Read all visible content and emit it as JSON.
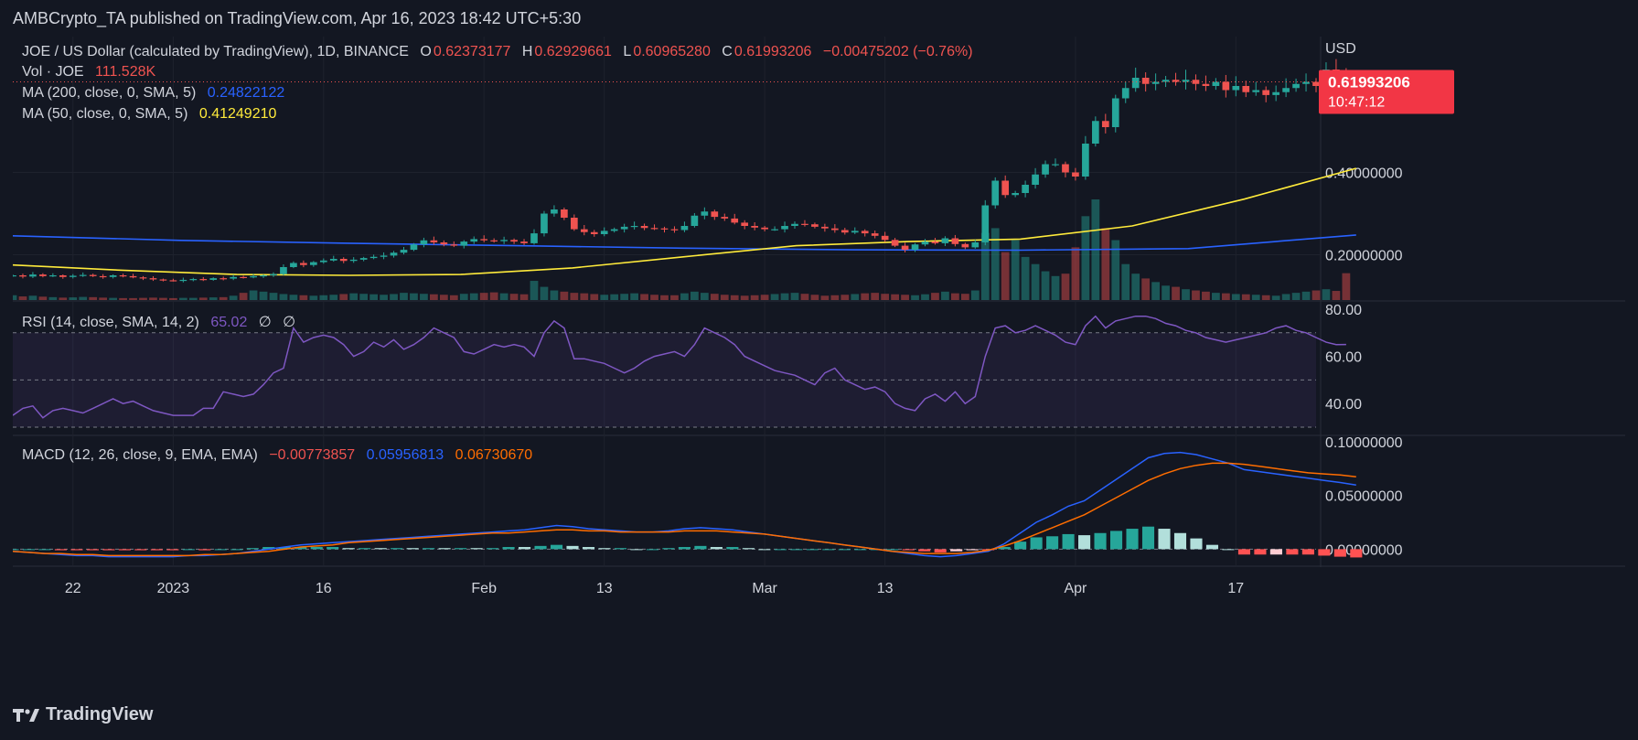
{
  "header": {
    "title": "AMBCrypto_TA published on TradingView.com, Apr 16, 2023 18:42 UTC+5:30"
  },
  "legend": {
    "symbol": "JOE / US Dollar (calculated by TradingView), 1D, BINANCE",
    "o_label": "O",
    "o_value": "0.62373177",
    "h_label": "H",
    "h_value": "0.62929661",
    "l_label": "L",
    "l_value": "0.60965280",
    "c_label": "C",
    "c_value": "0.61993206",
    "change": "−0.00475202 (−0.76%)",
    "vol_label": "Vol · JOE",
    "vol_value": "111.528K",
    "ma200_label": "MA (200, close, 0, SMA, 5)",
    "ma200_value": "0.24822122",
    "ma50_label": "MA (50, close, 0, SMA, 5)",
    "ma50_value": "0.41249210",
    "rsi_label": "RSI (14, close, SMA, 14, 2)",
    "rsi_value": "65.02",
    "rsi_na1": "∅",
    "rsi_na2": "∅",
    "macd_label": "MACD (12, 26, close, 9, EMA, EMA)",
    "macd_hist": "−0.00773857",
    "macd_line": "0.05956813",
    "macd_signal": "0.06730670"
  },
  "price_axis": {
    "currency": "USD",
    "last_price": "0.61993206",
    "countdown": "10:47:12"
  },
  "colors": {
    "up": "#26a69a",
    "down": "#ef5350",
    "ma200": "#2962ff",
    "ma50": "#ffeb3b",
    "rsi": "#7e57c2",
    "macd": "#2962ff",
    "signal": "#ff6d00",
    "bg": "#131722"
  },
  "footer": {
    "brand": "TradingView"
  },
  "chart_data": [
    {
      "type": "candlestick",
      "title": "JOE / US Dollar (calculated by TradingView), 1D, BINANCE",
      "ylabel": "USD",
      "ylim": [
        0.09,
        0.73
      ],
      "yticks": [
        "0.40000000",
        "0.20000000"
      ],
      "ytick_values": [
        0.4,
        0.2
      ],
      "xticks": [
        "22",
        "2023",
        "16",
        "Feb",
        "13",
        "Mar",
        "13",
        "Apr",
        "17"
      ],
      "xtick_dates": [
        "2022-12-22",
        "2023-01-01",
        "2023-01-16",
        "2023-02-01",
        "2023-02-13",
        "2023-03-01",
        "2023-03-13",
        "2023-04-01",
        "2023-04-17"
      ],
      "xlim": [
        "2022-12-16",
        "2023-04-25"
      ],
      "closes": [
        0.15,
        0.147,
        0.152,
        0.148,
        0.15,
        0.146,
        0.149,
        0.151,
        0.148,
        0.146,
        0.15,
        0.148,
        0.145,
        0.143,
        0.14,
        0.138,
        0.137,
        0.139,
        0.141,
        0.139,
        0.143,
        0.142,
        0.146,
        0.145,
        0.148,
        0.15,
        0.153,
        0.17,
        0.18,
        0.175,
        0.182,
        0.186,
        0.19,
        0.185,
        0.188,
        0.192,
        0.195,
        0.198,
        0.205,
        0.212,
        0.225,
        0.235,
        0.23,
        0.225,
        0.222,
        0.232,
        0.238,
        0.235,
        0.233,
        0.236,
        0.232,
        0.228,
        0.252,
        0.3,
        0.31,
        0.29,
        0.262,
        0.255,
        0.25,
        0.258,
        0.262,
        0.268,
        0.27,
        0.265,
        0.264,
        0.262,
        0.26,
        0.27,
        0.295,
        0.305,
        0.292,
        0.288,
        0.278,
        0.27,
        0.266,
        0.262,
        0.262,
        0.27,
        0.275,
        0.274,
        0.268,
        0.264,
        0.26,
        0.254,
        0.258,
        0.252,
        0.246,
        0.236,
        0.222,
        0.212,
        0.225,
        0.232,
        0.228,
        0.24,
        0.226,
        0.218,
        0.23,
        0.32,
        0.38,
        0.345,
        0.35,
        0.37,
        0.395,
        0.42,
        0.42,
        0.4,
        0.39,
        0.47,
        0.525,
        0.51,
        0.58,
        0.605,
        0.63,
        0.615,
        0.62,
        0.625,
        0.62,
        0.625,
        0.615,
        0.61,
        0.62,
        0.6,
        0.61,
        0.595,
        0.6,
        0.588,
        0.595,
        0.605,
        0.615,
        0.62,
        0.61,
        0.65,
        0.64,
        0.625,
        0.62
      ],
      "last_price": 0.61993206,
      "ma200": [
        0.246,
        0.235,
        0.228,
        0.222,
        0.216,
        0.212,
        0.211,
        0.215,
        0.248
      ],
      "ma50": [
        0.175,
        0.162,
        0.152,
        0.15,
        0.152,
        0.168,
        0.195,
        0.222,
        0.232,
        0.238,
        0.27,
        0.335,
        0.41
      ]
    },
    {
      "type": "bar",
      "title": "Vol · JOE",
      "values_k": [
        20,
        15,
        18,
        14,
        12,
        10,
        11,
        13,
        12,
        10,
        9,
        8,
        8,
        9,
        10,
        9,
        8,
        9,
        9,
        10,
        11,
        12,
        18,
        30,
        40,
        35,
        30,
        25,
        22,
        20,
        18,
        20,
        22,
        25,
        28,
        26,
        24,
        22,
        25,
        30,
        28,
        26,
        24,
        22,
        20,
        26,
        28,
        30,
        32,
        28,
        26,
        24,
        80,
        55,
        40,
        35,
        30,
        28,
        25,
        22,
        24,
        26,
        28,
        25,
        22,
        20,
        20,
        28,
        35,
        30,
        26,
        22,
        20,
        18,
        20,
        22,
        25,
        28,
        30,
        26,
        22,
        18,
        20,
        22,
        25,
        28,
        30,
        26,
        24,
        22,
        20,
        24,
        30,
        35,
        28,
        26,
        40,
        280,
        300,
        200,
        250,
        180,
        150,
        120,
        100,
        110,
        220,
        350,
        420,
        300,
        250,
        150,
        110,
        90,
        75,
        60,
        55,
        45,
        40,
        35,
        30,
        28,
        25,
        24,
        22,
        20,
        18,
        25,
        30,
        35,
        40,
        45,
        38,
        112
      ]
    },
    {
      "type": "line",
      "title": "RSI (14, close, SMA, 14, 2)",
      "ylim": [
        30,
        80
      ],
      "yticks": [
        "80.00",
        "60.00",
        "40.00"
      ],
      "ytick_values": [
        80,
        60,
        40
      ],
      "bands": [
        30,
        70
      ],
      "values": [
        35,
        38,
        39,
        34,
        37,
        38,
        37,
        36,
        38,
        40,
        42,
        40,
        41,
        39,
        37,
        36,
        35,
        35,
        35,
        38,
        38,
        45,
        44,
        43,
        44,
        48,
        53,
        55,
        72,
        66,
        68,
        69,
        68,
        65,
        60,
        62,
        66,
        64,
        67,
        63,
        65,
        68,
        72,
        70,
        68,
        62,
        61,
        63,
        65,
        64,
        65,
        64,
        60,
        70,
        75,
        72,
        59,
        59,
        58,
        57,
        55,
        53,
        55,
        58,
        60,
        61,
        62,
        60,
        65,
        72,
        70,
        68,
        65,
        60,
        58,
        56,
        54,
        53,
        52,
        50,
        48,
        53,
        55,
        50,
        48,
        46,
        47,
        45,
        40,
        38,
        37,
        42,
        44,
        41,
        45,
        40,
        43,
        60,
        72,
        73,
        70,
        71,
        73,
        71,
        69,
        66,
        65,
        73,
        77,
        72,
        75,
        76,
        77,
        77,
        76,
        74,
        73,
        71,
        70,
        68,
        67,
        66,
        67,
        68,
        69,
        70,
        72,
        73,
        71,
        70,
        68,
        66,
        65,
        65.02
      ]
    },
    {
      "type": "bar+line",
      "title": "MACD (12, 26, close, 9, EMA, EMA)",
      "ylim": [
        -0.015,
        0.105
      ],
      "yticks": [
        "0.10000000",
        "0.05000000",
        "0.00000000"
      ],
      "ytick_values": [
        0.1,
        0.05,
        0.0
      ],
      "macd": [
        -0.002,
        -0.003,
        -0.004,
        -0.005,
        -0.006,
        -0.006,
        -0.007,
        -0.007,
        -0.007,
        -0.007,
        -0.007,
        -0.006,
        -0.006,
        -0.005,
        -0.004,
        -0.002,
        0.0,
        0.002,
        0.004,
        0.005,
        0.006,
        0.007,
        0.008,
        0.009,
        0.01,
        0.011,
        0.012,
        0.013,
        0.014,
        0.015,
        0.016,
        0.017,
        0.018,
        0.02,
        0.022,
        0.021,
        0.019,
        0.018,
        0.017,
        0.016,
        0.016,
        0.017,
        0.019,
        0.02,
        0.019,
        0.018,
        0.016,
        0.014,
        0.012,
        0.01,
        0.008,
        0.006,
        0.004,
        0.002,
        0.0,
        -0.002,
        -0.004,
        -0.006,
        -0.007,
        -0.006,
        -0.004,
        -0.002,
        0.005,
        0.015,
        0.025,
        0.032,
        0.04,
        0.045,
        0.055,
        0.065,
        0.075,
        0.085,
        0.089,
        0.09,
        0.088,
        0.084,
        0.08,
        0.074,
        0.072,
        0.07,
        0.068,
        0.066,
        0.064,
        0.062,
        0.0596
      ],
      "signal": [
        -0.002,
        -0.003,
        -0.004,
        -0.004,
        -0.005,
        -0.005,
        -0.006,
        -0.006,
        -0.006,
        -0.006,
        -0.006,
        -0.006,
        -0.005,
        -0.005,
        -0.004,
        -0.003,
        -0.002,
        0.0,
        0.002,
        0.003,
        0.004,
        0.006,
        0.007,
        0.008,
        0.009,
        0.01,
        0.011,
        0.012,
        0.013,
        0.014,
        0.015,
        0.015,
        0.016,
        0.017,
        0.018,
        0.018,
        0.017,
        0.017,
        0.016,
        0.016,
        0.016,
        0.016,
        0.017,
        0.017,
        0.017,
        0.016,
        0.015,
        0.014,
        0.012,
        0.01,
        0.008,
        0.006,
        0.004,
        0.002,
        0.0,
        -0.002,
        -0.003,
        -0.004,
        -0.004,
        -0.004,
        -0.003,
        -0.001,
        0.003,
        0.008,
        0.014,
        0.02,
        0.026,
        0.032,
        0.04,
        0.048,
        0.056,
        0.064,
        0.07,
        0.075,
        0.078,
        0.08,
        0.08,
        0.079,
        0.077,
        0.075,
        0.073,
        0.071,
        0.07,
        0.069,
        0.0673
      ],
      "histogram_last": -0.00773857
    }
  ]
}
